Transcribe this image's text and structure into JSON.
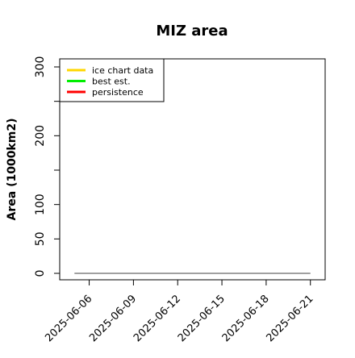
{
  "chart_data": {
    "type": "line",
    "title": "MIZ area",
    "ylabel": "Area (1000km2)",
    "xlabel": "",
    "ylim": [
      0,
      310
    ],
    "xlim": [
      "2025-06-04",
      "2025-06-22"
    ],
    "x_ticks": [
      "2025-06-06",
      "2025-06-09",
      "2025-06-12",
      "2025-06-15",
      "2025-06-18",
      "2025-06-21"
    ],
    "y_ticks": [
      0,
      50,
      100,
      150,
      200,
      250,
      300
    ],
    "y_tick_labels": [
      "0",
      "50",
      "100",
      "",
      "200",
      "",
      "300"
    ],
    "grid": false,
    "legend_position": "top-left",
    "legend": [
      {
        "label": "ice chart data",
        "color": "#ffd700"
      },
      {
        "label": "best est.",
        "color": "#00ee00"
      },
      {
        "label": "persistence",
        "color": "#ff0000"
      }
    ],
    "series": [
      {
        "color": "#808080",
        "x": [
          "2025-06-05",
          "2025-06-21"
        ],
        "y": [
          0,
          0
        ]
      }
    ]
  }
}
